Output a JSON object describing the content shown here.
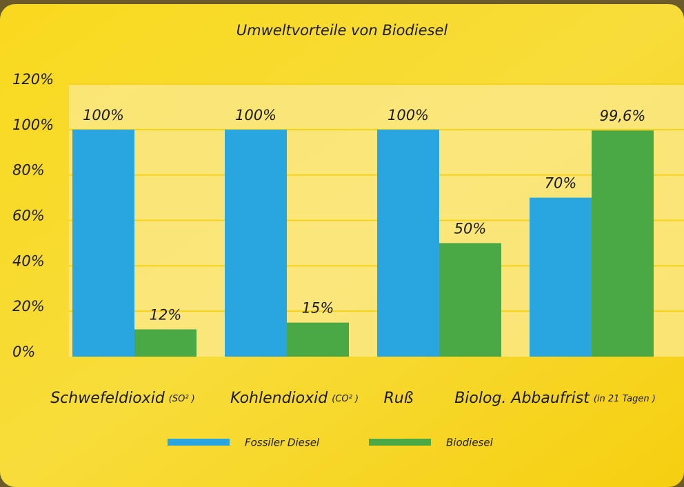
{
  "chart_data": {
    "type": "bar",
    "title": "Umweltvorteile von Biodiesel",
    "categories": [
      "Schwefeldioxid",
      "Kohlendioxid",
      "Ruß",
      "Biolog. Abbaufrist"
    ],
    "category_notes": [
      "(SO² )",
      "(CO² )",
      null,
      "(in 21 Tagen )"
    ],
    "series": [
      {
        "name": "Fossiler Diesel",
        "color": "#29a6df",
        "values": [
          100,
          100,
          100,
          70
        ],
        "value_labels": [
          "100%",
          "100%",
          "100%",
          "70%"
        ]
      },
      {
        "name": "Biodiesel",
        "color": "#4aa945",
        "values": [
          12,
          15,
          50,
          99.6
        ],
        "value_labels": [
          "12%",
          "15%",
          "50%",
          "99,6%"
        ]
      }
    ],
    "ylim": [
      0,
      120
    ],
    "yticks": [
      {
        "value": 0,
        "label": "0%"
      },
      {
        "value": 20,
        "label": "20%"
      },
      {
        "value": 40,
        "label": "40%"
      },
      {
        "value": 60,
        "label": "60%"
      },
      {
        "value": 80,
        "label": "80%"
      },
      {
        "value": 100,
        "label": "100%"
      },
      {
        "value": 120,
        "label": "120%"
      }
    ],
    "grid": true
  }
}
